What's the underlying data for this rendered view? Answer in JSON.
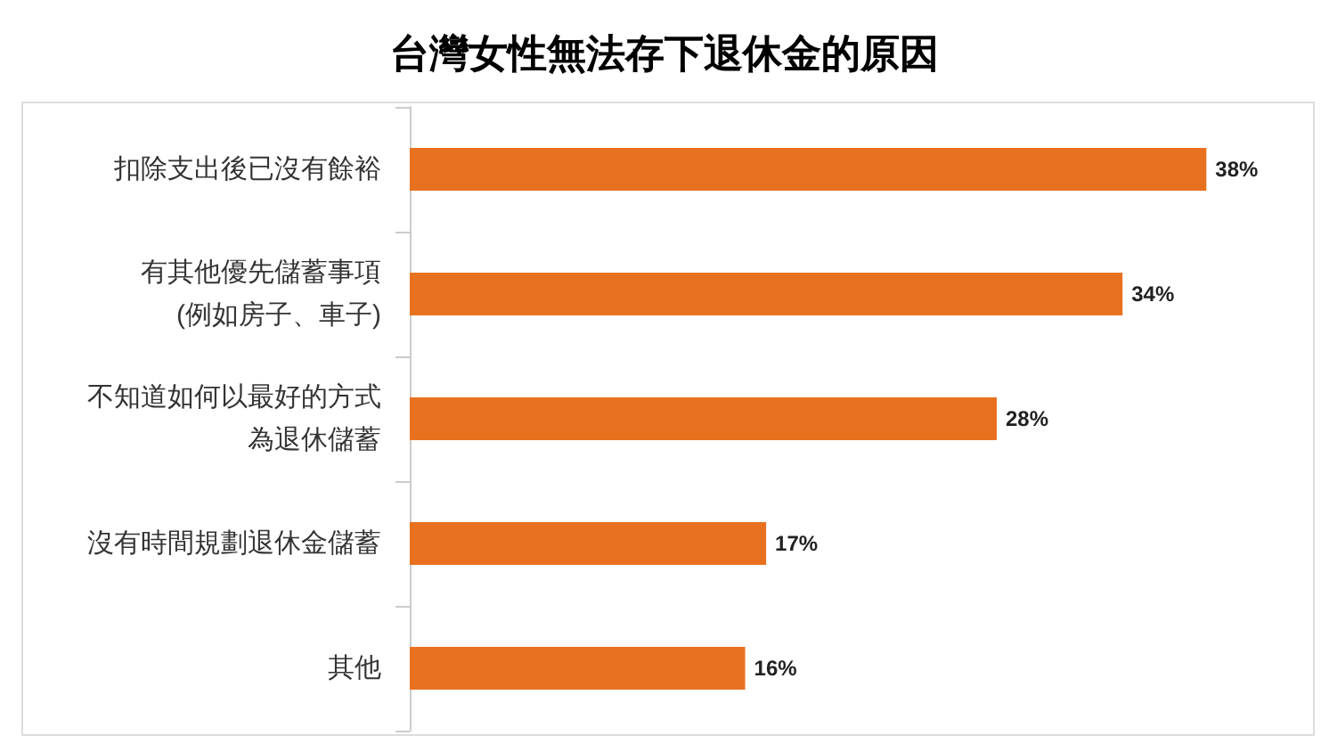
{
  "chart_data": {
    "type": "bar",
    "orientation": "horizontal",
    "title": "台灣女性無法存下退休金的原因",
    "categories": [
      "扣除支出後已沒有餘裕",
      "有其他優先儲蓄事項\n(例如房子、車子)",
      "不知道如何以最好的方式為退休儲蓄",
      "沒有時間規劃退休金儲蓄",
      "其他"
    ],
    "values": [
      38,
      34,
      28,
      17,
      16
    ],
    "value_labels": [
      "38%",
      "34%",
      "28%",
      "17%",
      "16%"
    ],
    "color": "#e8711f"
  }
}
